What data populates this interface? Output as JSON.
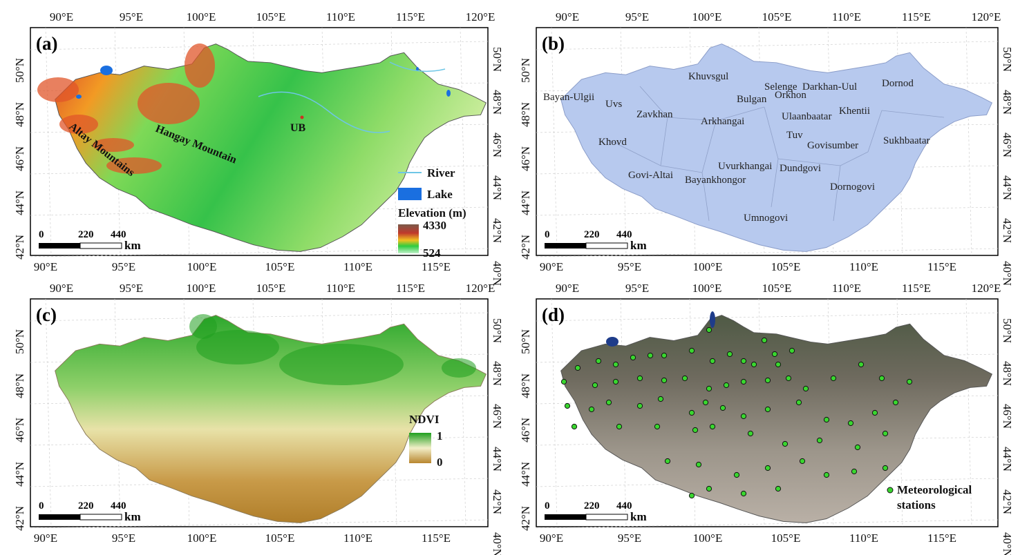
{
  "panels": [
    {
      "id": "a",
      "label": "(a)",
      "x_ticks": [
        "90°E",
        "95°E",
        "100°E",
        "105°E",
        "110°E",
        "115°E",
        "120°E"
      ],
      "x_ticks_bottom": [
        "90°E",
        "95°E",
        "100°E",
        "105°E",
        "110°E",
        "115°E"
      ],
      "y_ticks": [
        "50°N",
        "48°N",
        "46°N",
        "44°N",
        "42°N",
        "40°N"
      ],
      "y_ticks_left": [
        "50°N",
        "48°N",
        "46°N",
        "44°N",
        "42°N"
      ],
      "features": {
        "mountain_1": "Hangay Mountain",
        "mountain_2": "Altay Mountains",
        "city": "UB"
      },
      "legend": {
        "river": "River",
        "lake": "Lake",
        "elevation_title": "Elevation (m)",
        "elevation_max": "4330",
        "elevation_min": "524"
      },
      "scale": {
        "zero": "0",
        "mid": "220",
        "end": "440",
        "unit": "km"
      }
    },
    {
      "id": "b",
      "label": "(b)",
      "x_ticks": [
        "90°E",
        "95°E",
        "100°E",
        "105°E",
        "110°E",
        "115°E",
        "120°E"
      ],
      "x_ticks_bottom": [
        "90°E",
        "95°E",
        "100°E",
        "105°E",
        "110°E",
        "115°E"
      ],
      "y_ticks": [
        "50°N",
        "48°N",
        "46°N",
        "44°N",
        "42°N",
        "40°N"
      ],
      "y_ticks_left": [
        "50°N",
        "48°N",
        "46°N",
        "44°N",
        "42°N"
      ],
      "provinces": [
        "Uvs",
        "Bayan-Ulgii",
        "Khuvsgul",
        "Selenge",
        "Darkhan-Uul",
        "Dornod",
        "Orkhon",
        "Bulgan",
        "Zavkhan",
        "Arkhangai",
        "Ulaanbaatar",
        "Khentii",
        "Khovd",
        "Tuv",
        "Govisumber",
        "Sukhbaatar",
        "Uvurkhangai",
        "Dundgovi",
        "Govi-Altai",
        "Bayankhongor",
        "Dornogovi",
        "Umnogovi"
      ],
      "scale": {
        "zero": "0",
        "mid": "220",
        "end": "440",
        "unit": "km"
      }
    },
    {
      "id": "c",
      "label": "(c)",
      "x_ticks": [
        "90°E",
        "95°E",
        "100°E",
        "105°E",
        "110°E",
        "115°E",
        "120°E"
      ],
      "x_ticks_bottom": [
        "90°E",
        "95°E",
        "100°E",
        "105°E",
        "110°E",
        "115°E"
      ],
      "y_ticks": [
        "50°N",
        "48°N",
        "46°N",
        "44°N",
        "42°N",
        "40°N"
      ],
      "y_ticks_left": [
        "50°N",
        "48°N",
        "46°N",
        "44°N",
        "42°N"
      ],
      "legend": {
        "title": "NDVI",
        "max": "1",
        "min": "0"
      },
      "scale": {
        "zero": "0",
        "mid": "220",
        "end": "440",
        "unit": "km"
      }
    },
    {
      "id": "d",
      "label": "(d)",
      "x_ticks": [
        "90°E",
        "95°E",
        "100°E",
        "105°E",
        "110°E",
        "115°E",
        "120°E"
      ],
      "x_ticks_bottom": [
        "90°E",
        "95°E",
        "100°E",
        "105°E",
        "110°E",
        "115°E"
      ],
      "y_ticks": [
        "50°N",
        "48°N",
        "46°N",
        "44°N",
        "42°N",
        "40°N"
      ],
      "y_ticks_left": [
        "50°N",
        "48°N",
        "46°N",
        "44°N",
        "42°N"
      ],
      "legend": {
        "line1": "Meteorological",
        "line2": "stations"
      },
      "scale": {
        "zero": "0",
        "mid": "220",
        "end": "440",
        "unit": "km"
      }
    }
  ],
  "colors": {
    "elevation_high": "#c0392b",
    "elevation_mid": "#f0c020",
    "elevation_low": "#2ecc40",
    "river": "#6ec6e6",
    "lake": "#1a6fe0",
    "province_fill": "#b7c9ee",
    "ndvi_high": "#1f9f1f",
    "ndvi_low": "#b8862e",
    "station": "#39d62f"
  }
}
